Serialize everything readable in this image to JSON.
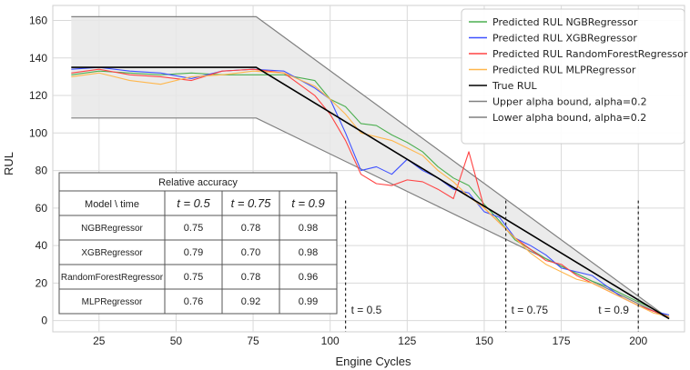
{
  "chart_data": {
    "type": "line",
    "xlabel": "Engine Cycles",
    "ylabel": "RUL",
    "xlim": [
      10,
      215
    ],
    "ylim": [
      -6,
      168
    ],
    "xticks": [
      25,
      50,
      75,
      100,
      125,
      150,
      175,
      200
    ],
    "yticks": [
      0,
      20,
      40,
      60,
      80,
      100,
      120,
      140,
      160
    ],
    "grid": true,
    "legend_position": "top-right",
    "legend": [
      {
        "label": "Predicted RUL NGBRegressor",
        "color": "#4caf50"
      },
      {
        "label": "Predicted RUL XGBRegressor",
        "color": "#3f51ff"
      },
      {
        "label": "Predicted RUL RandomForestRegressor",
        "color": "#ff4444"
      },
      {
        "label": "Predicted RUL MLPRegressor",
        "color": "#ffb74d"
      },
      {
        "label": "True RUL",
        "color": "#000000"
      },
      {
        "label": "Upper alpha bound, alpha=0.2",
        "color": "#808080"
      },
      {
        "label": "Lower alpha bound, alpha=0.2",
        "color": "#808080"
      }
    ],
    "true_rul": {
      "x": [
        16,
        76,
        210
      ],
      "y": [
        135,
        135,
        1
      ]
    },
    "upper_bound": {
      "x": [
        16,
        76,
        210
      ],
      "y": [
        162,
        162,
        1
      ]
    },
    "lower_bound": {
      "x": [
        16,
        76,
        210
      ],
      "y": [
        108,
        108,
        1
      ]
    },
    "series": [
      {
        "name": "Predicted RUL NGBRegressor",
        "color": "#4caf50",
        "x": [
          16,
          25,
          35,
          45,
          55,
          65,
          75,
          85,
          95,
          100,
          105,
          110,
          115,
          120,
          125,
          130,
          135,
          140,
          145,
          150,
          155,
          160,
          165,
          170,
          175,
          180,
          185,
          190,
          195,
          200,
          205,
          210
        ],
        "y": [
          131,
          133,
          132,
          131,
          132,
          131,
          131,
          131,
          128,
          118,
          114,
          105,
          104,
          99,
          95,
          90,
          82,
          76,
          72,
          62,
          53,
          43,
          38,
          33,
          29,
          25,
          21,
          18,
          14,
          10,
          6,
          2
        ]
      },
      {
        "name": "Predicted RUL XGBRegressor",
        "color": "#3f51ff",
        "x": [
          16,
          25,
          35,
          45,
          55,
          65,
          75,
          85,
          95,
          100,
          105,
          110,
          115,
          120,
          125,
          130,
          135,
          140,
          145,
          150,
          155,
          160,
          165,
          170,
          175,
          180,
          185,
          190,
          195,
          200,
          205,
          210
        ],
        "y": [
          134,
          135,
          133,
          132,
          129,
          133,
          134,
          133,
          124,
          118,
          100,
          80,
          82,
          78,
          86,
          80,
          76,
          70,
          68,
          58,
          55,
          44,
          40,
          35,
          28,
          26,
          24,
          18,
          12,
          8,
          5,
          3
        ]
      },
      {
        "name": "Predicted RUL RandomForestRegressor",
        "color": "#ff4444",
        "x": [
          16,
          25,
          35,
          45,
          55,
          65,
          75,
          85,
          95,
          100,
          105,
          110,
          115,
          120,
          125,
          130,
          135,
          140,
          145,
          150,
          155,
          160,
          165,
          170,
          175,
          180,
          185,
          190,
          195,
          200,
          205,
          210
        ],
        "y": [
          132,
          134,
          131,
          130,
          128,
          133,
          134,
          132,
          120,
          110,
          96,
          78,
          73,
          72,
          75,
          74,
          70,
          65,
          90,
          60,
          52,
          44,
          38,
          32,
          30,
          24,
          20,
          16,
          12,
          8,
          5,
          2
        ]
      },
      {
        "name": "Predicted RUL MLPRegressor",
        "color": "#ffb74d",
        "x": [
          16,
          25,
          35,
          45,
          55,
          65,
          75,
          85,
          95,
          100,
          105,
          110,
          115,
          120,
          125,
          130,
          135,
          140,
          145,
          150,
          155,
          160,
          165,
          170,
          175,
          180,
          185,
          190,
          195,
          200,
          205,
          210
        ],
        "y": [
          130,
          132,
          128,
          126,
          130,
          131,
          133,
          132,
          125,
          118,
          110,
          100,
          98,
          96,
          92,
          88,
          80,
          74,
          66,
          60,
          52,
          44,
          36,
          30,
          26,
          22,
          20,
          16,
          12,
          8,
          4,
          2
        ]
      }
    ],
    "annotations": [
      {
        "label": "t = 0.5",
        "x": 105
      },
      {
        "label": "t = 0.75",
        "x": 157
      },
      {
        "label": "t = 0.9",
        "x": 200
      }
    ]
  },
  "table": {
    "title": "Relative accuracy",
    "header": [
      "Model \\ time",
      "t = 0.5",
      "t = 0.75",
      "t = 0.9"
    ],
    "rows": [
      [
        "NGBRegressor",
        "0.75",
        "0.78",
        "0.98"
      ],
      [
        "XGBRegressor",
        "0.79",
        "0.70",
        "0.98"
      ],
      [
        "RandomForestRegressor",
        "0.75",
        "0.78",
        "0.96"
      ],
      [
        "MLPRegressor",
        "0.76",
        "0.92",
        "0.99"
      ]
    ]
  }
}
